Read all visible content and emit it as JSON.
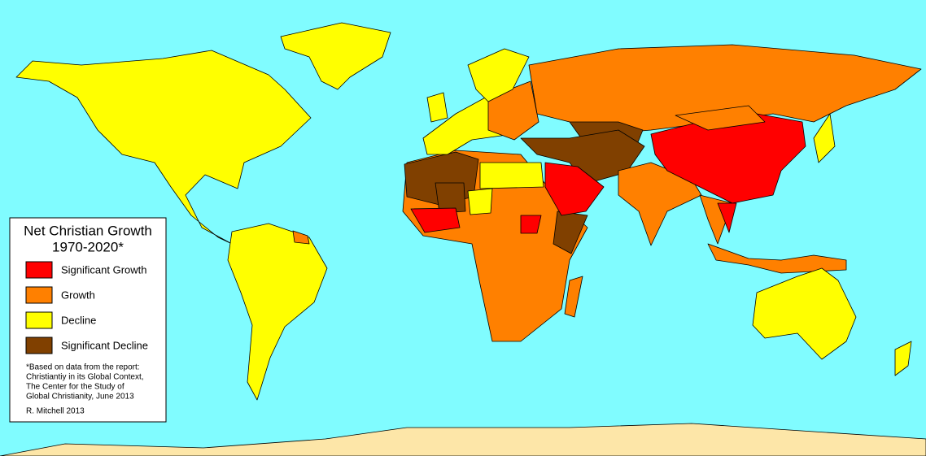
{
  "legend": {
    "title_lines": [
      "Net Christian Growth",
      "1970-2020*"
    ],
    "items": [
      {
        "label": "Significant Growth",
        "color": "#ff0000"
      },
      {
        "label": "Growth",
        "color": "#ff8000"
      },
      {
        "label": "Decline",
        "color": "#ffff00"
      },
      {
        "label": "Significant Decline",
        "color": "#804000"
      }
    ],
    "footnote_lines": [
      "*Based on data from the report:",
      "Christiantiy in its Global Context,",
      "The Center for the Study of",
      "Global Christianity, June 2013"
    ],
    "credit": "R. Mitchell 2013"
  }
}
